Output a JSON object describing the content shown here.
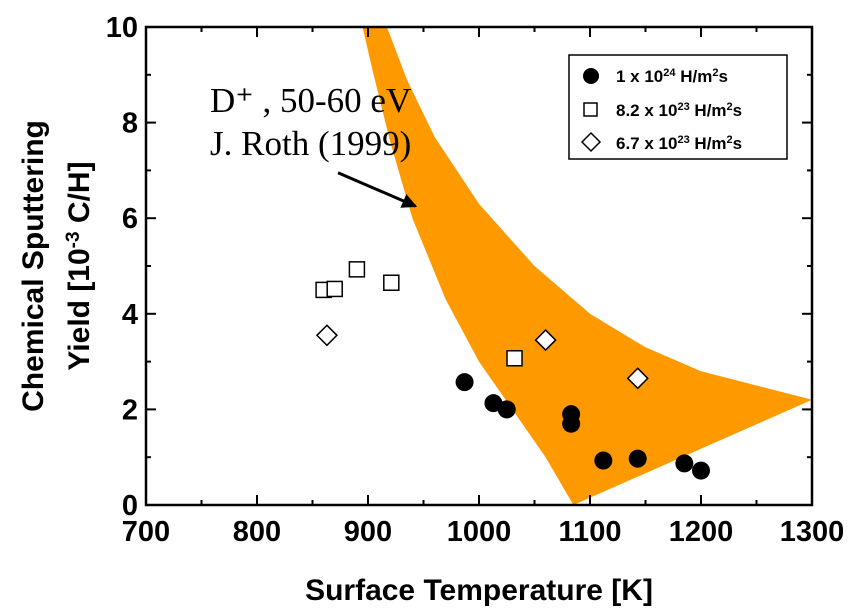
{
  "chart_data": {
    "type": "scatter",
    "xlabel": "Surface Temperature [K]",
    "ylabel_line1": "Chemical Sputtering",
    "ylabel_line2_prefix": "Yield [10",
    "ylabel_line2_exp": "-3",
    "ylabel_line2_suffix": " C/H]",
    "xlim": [
      700,
      1300
    ],
    "ylim": [
      0,
      10
    ],
    "xticks": [
      700,
      800,
      900,
      1000,
      1100,
      1200,
      1300
    ],
    "yticks": [
      0,
      2,
      4,
      6,
      8,
      10
    ],
    "grid": false,
    "legend_position": "top-right",
    "series": [
      {
        "name_base": "1 x 10",
        "name_exp": "24",
        "name_unit": " H/m",
        "name_unit_exp": "2",
        "name_tail": "s",
        "marker": "filled-circle",
        "color": "#000000",
        "points": [
          [
            987,
            2.57
          ],
          [
            1013,
            2.13
          ],
          [
            1025,
            2.0
          ],
          [
            1083,
            1.9
          ],
          [
            1083,
            1.7
          ],
          [
            1112,
            0.93
          ],
          [
            1143,
            0.97
          ],
          [
            1185,
            0.87
          ],
          [
            1200,
            0.72
          ]
        ]
      },
      {
        "name_base": "8.2 x 10",
        "name_exp": "23",
        "name_unit": " H/m",
        "name_unit_exp": "2",
        "name_tail": "s",
        "marker": "open-square",
        "color": "#000000",
        "points": [
          [
            860,
            4.5
          ],
          [
            870,
            4.52
          ],
          [
            890,
            4.93
          ],
          [
            921,
            4.65
          ],
          [
            1032,
            3.07
          ]
        ]
      },
      {
        "name_base": "6.7 x 10",
        "name_exp": "23",
        "name_unit": " H/m",
        "name_unit_exp": "2",
        "name_tail": "s",
        "marker": "open-diamond",
        "color": "#000000",
        "points": [
          [
            863,
            3.55
          ],
          [
            1060,
            3.45
          ],
          [
            1143,
            2.65
          ]
        ]
      }
    ],
    "band": {
      "color": "#FF9900",
      "upper": [
        [
          917,
          10
        ],
        [
          935,
          8.9
        ],
        [
          960,
          7.7
        ],
        [
          1000,
          6.3
        ],
        [
          1050,
          5.0
        ],
        [
          1100,
          4.0
        ],
        [
          1150,
          3.3
        ],
        [
          1200,
          2.8
        ],
        [
          1250,
          2.5
        ],
        [
          1300,
          2.2
        ]
      ],
      "lower": [
        [
          1085,
          0
        ],
        [
          1060,
          1.0
        ],
        [
          1030,
          2.0
        ],
        [
          1000,
          3.0
        ],
        [
          970,
          4.3
        ],
        [
          940,
          6.0
        ],
        [
          920,
          7.6
        ],
        [
          905,
          9.0
        ],
        [
          895,
          10
        ]
      ]
    },
    "annotation": {
      "line1": "D⁺ , 50-60 eV",
      "line2": "J. Roth (1999)",
      "arrow_from": [
        873,
        6.95
      ],
      "arrow_to": [
        943,
        6.25
      ]
    }
  }
}
